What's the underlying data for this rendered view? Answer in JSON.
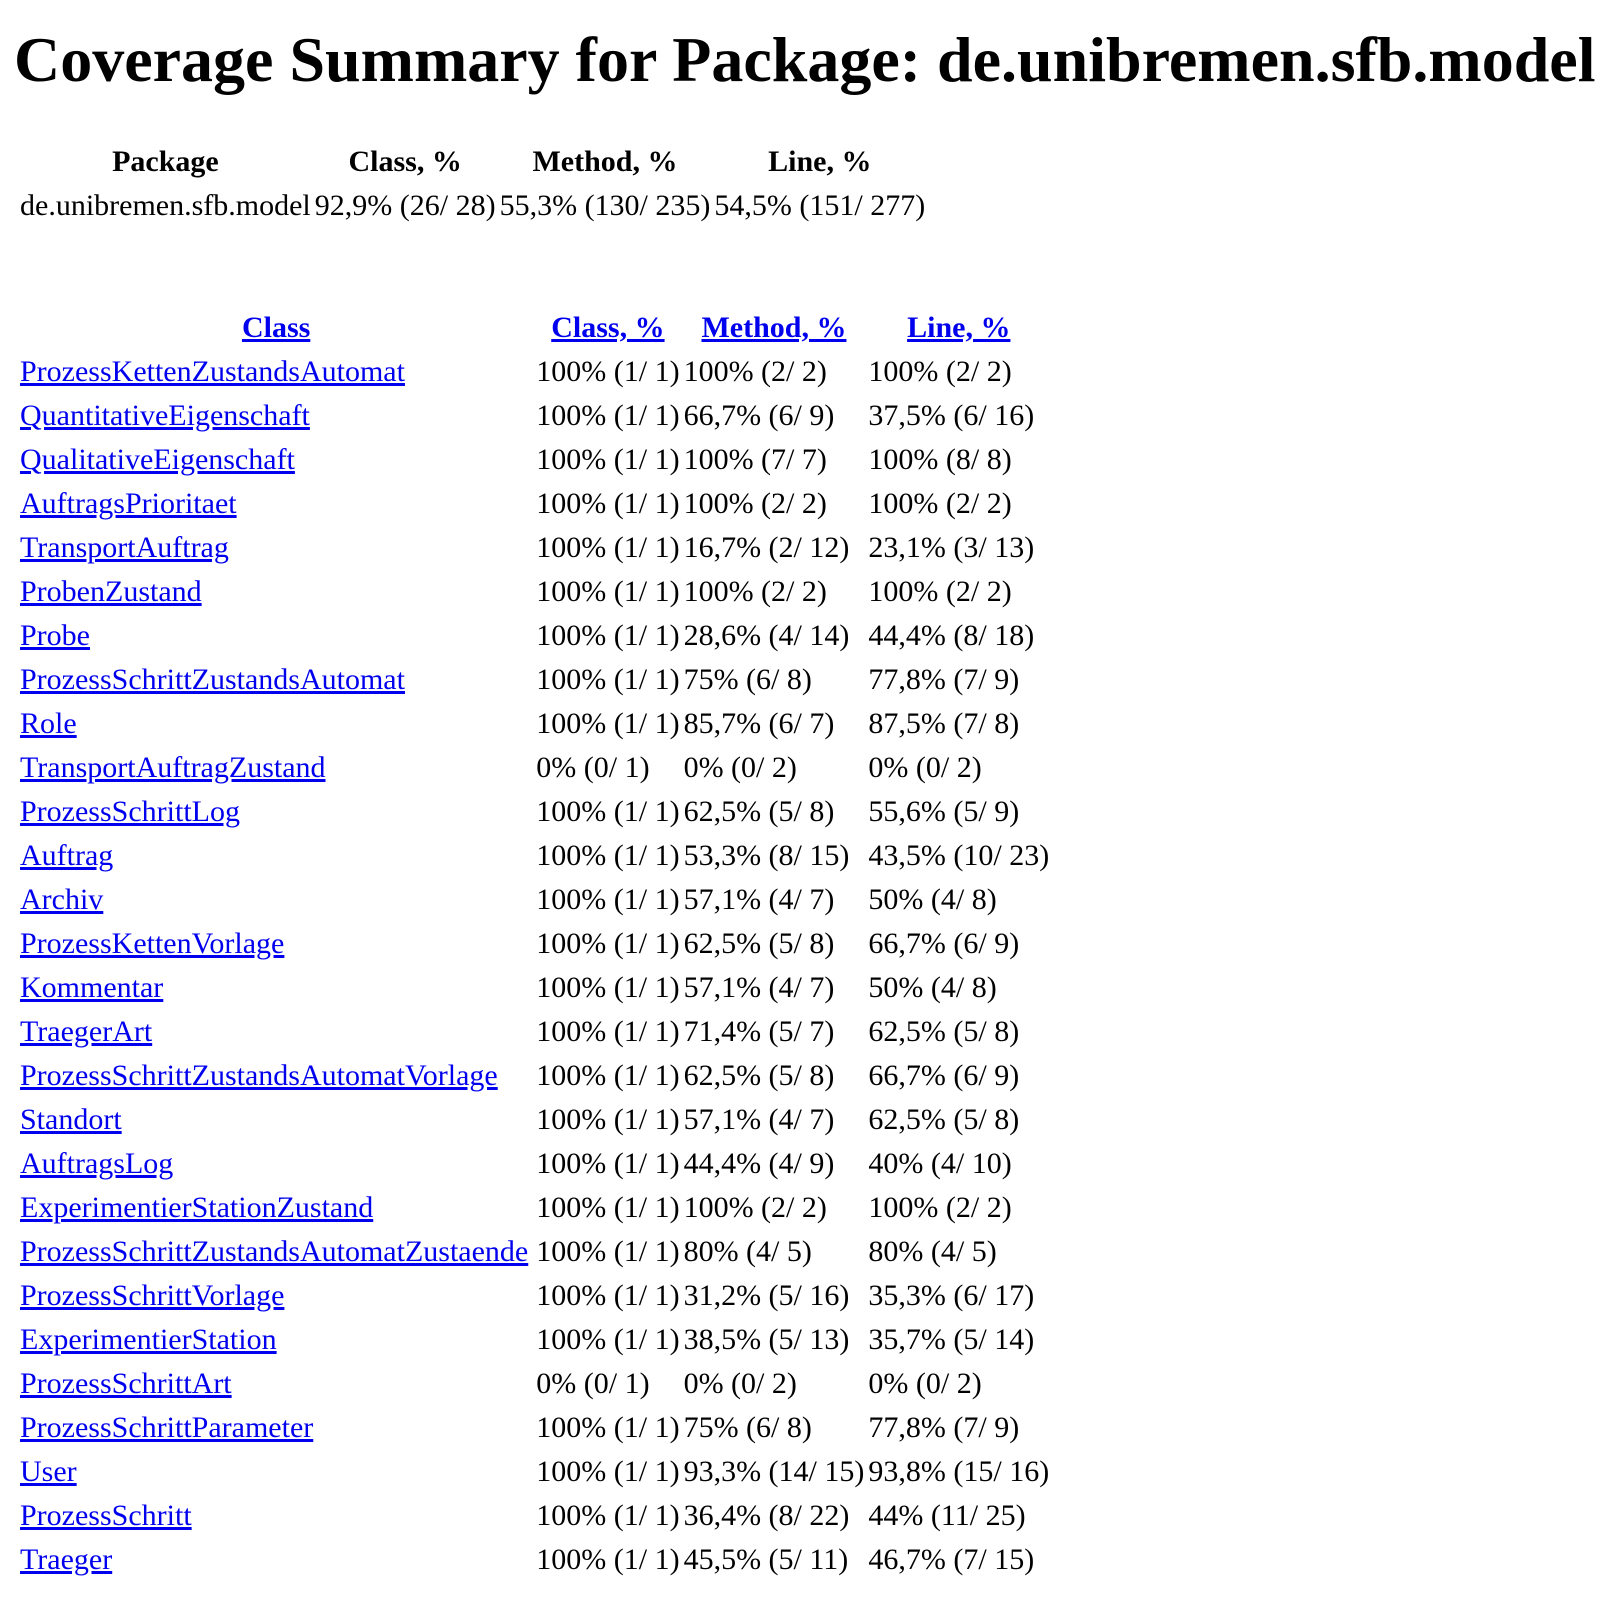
{
  "page": {
    "title": "Coverage Summary for Package: de.unibremen.sfb.model"
  },
  "summary": {
    "headers": [
      "Package",
      "Class, %",
      "Method, %",
      "Line, %"
    ],
    "row": {
      "package": "de.unibremen.sfb.model",
      "class_pct": "92,9% (26/ 28)",
      "method_pct": "55,3% (130/ 235)",
      "line_pct": "54,5% (151/ 277)"
    }
  },
  "classes": {
    "headers": [
      "Class",
      "Class, %",
      "Method, %",
      "Line, %"
    ],
    "rows": [
      {
        "name": "ProzessKettenZustandsAutomat",
        "class_pct": "100% (1/ 1)",
        "method_pct": "100% (2/ 2)",
        "line_pct": "100% (2/ 2)"
      },
      {
        "name": "QuantitativeEigenschaft",
        "class_pct": "100% (1/ 1)",
        "method_pct": "66,7% (6/ 9)",
        "line_pct": "37,5% (6/ 16)"
      },
      {
        "name": "QualitativeEigenschaft",
        "class_pct": "100% (1/ 1)",
        "method_pct": "100% (7/ 7)",
        "line_pct": "100% (8/ 8)"
      },
      {
        "name": "AuftragsPrioritaet",
        "class_pct": "100% (1/ 1)",
        "method_pct": "100% (2/ 2)",
        "line_pct": "100% (2/ 2)"
      },
      {
        "name": "TransportAuftrag",
        "class_pct": "100% (1/ 1)",
        "method_pct": "16,7% (2/ 12)",
        "line_pct": "23,1% (3/ 13)"
      },
      {
        "name": "ProbenZustand",
        "class_pct": "100% (1/ 1)",
        "method_pct": "100% (2/ 2)",
        "line_pct": "100% (2/ 2)"
      },
      {
        "name": "Probe",
        "class_pct": "100% (1/ 1)",
        "method_pct": "28,6% (4/ 14)",
        "line_pct": "44,4% (8/ 18)"
      },
      {
        "name": "ProzessSchrittZustandsAutomat",
        "class_pct": "100% (1/ 1)",
        "method_pct": "75% (6/ 8)",
        "line_pct": "77,8% (7/ 9)"
      },
      {
        "name": "Role",
        "class_pct": "100% (1/ 1)",
        "method_pct": "85,7% (6/ 7)",
        "line_pct": "87,5% (7/ 8)"
      },
      {
        "name": "TransportAuftragZustand",
        "class_pct": "0% (0/ 1)",
        "method_pct": "0% (0/ 2)",
        "line_pct": "0% (0/ 2)"
      },
      {
        "name": "ProzessSchrittLog",
        "class_pct": "100% (1/ 1)",
        "method_pct": "62,5% (5/ 8)",
        "line_pct": "55,6% (5/ 9)"
      },
      {
        "name": "Auftrag",
        "class_pct": "100% (1/ 1)",
        "method_pct": "53,3% (8/ 15)",
        "line_pct": "43,5% (10/ 23)"
      },
      {
        "name": "Archiv",
        "class_pct": "100% (1/ 1)",
        "method_pct": "57,1% (4/ 7)",
        "line_pct": "50% (4/ 8)"
      },
      {
        "name": "ProzessKettenVorlage",
        "class_pct": "100% (1/ 1)",
        "method_pct": "62,5% (5/ 8)",
        "line_pct": "66,7% (6/ 9)"
      },
      {
        "name": "Kommentar",
        "class_pct": "100% (1/ 1)",
        "method_pct": "57,1% (4/ 7)",
        "line_pct": "50% (4/ 8)"
      },
      {
        "name": "TraegerArt",
        "class_pct": "100% (1/ 1)",
        "method_pct": "71,4% (5/ 7)",
        "line_pct": "62,5% (5/ 8)"
      },
      {
        "name": "ProzessSchrittZustandsAutomatVorlage",
        "class_pct": "100% (1/ 1)",
        "method_pct": "62,5% (5/ 8)",
        "line_pct": "66,7% (6/ 9)"
      },
      {
        "name": "Standort",
        "class_pct": "100% (1/ 1)",
        "method_pct": "57,1% (4/ 7)",
        "line_pct": "62,5% (5/ 8)"
      },
      {
        "name": "AuftragsLog",
        "class_pct": "100% (1/ 1)",
        "method_pct": "44,4% (4/ 9)",
        "line_pct": "40% (4/ 10)"
      },
      {
        "name": "ExperimentierStationZustand",
        "class_pct": "100% (1/ 1)",
        "method_pct": "100% (2/ 2)",
        "line_pct": "100% (2/ 2)"
      },
      {
        "name": "ProzessSchrittZustandsAutomatZustaende",
        "class_pct": "100% (1/ 1)",
        "method_pct": "80% (4/ 5)",
        "line_pct": "80% (4/ 5)"
      },
      {
        "name": "ProzessSchrittVorlage",
        "class_pct": "100% (1/ 1)",
        "method_pct": "31,2% (5/ 16)",
        "line_pct": "35,3% (6/ 17)"
      },
      {
        "name": "ExperimentierStation",
        "class_pct": "100% (1/ 1)",
        "method_pct": "38,5% (5/ 13)",
        "line_pct": "35,7% (5/ 14)"
      },
      {
        "name": "ProzessSchrittArt",
        "class_pct": "0% (0/ 1)",
        "method_pct": "0% (0/ 2)",
        "line_pct": "0% (0/ 2)"
      },
      {
        "name": "ProzessSchrittParameter",
        "class_pct": "100% (1/ 1)",
        "method_pct": "75% (6/ 8)",
        "line_pct": "77,8% (7/ 9)"
      },
      {
        "name": "User",
        "class_pct": "100% (1/ 1)",
        "method_pct": "93,3% (14/ 15)",
        "line_pct": "93,8% (15/ 16)"
      },
      {
        "name": "ProzessSchritt",
        "class_pct": "100% (1/ 1)",
        "method_pct": "36,4% (8/ 22)",
        "line_pct": "44% (11/ 25)"
      },
      {
        "name": "Traeger",
        "class_pct": "100% (1/ 1)",
        "method_pct": "45,5% (5/ 11)",
        "line_pct": "46,7% (7/ 15)"
      }
    ]
  },
  "colors": {
    "link": "#0000ee",
    "text": "#000000",
    "background": "#ffffff"
  }
}
